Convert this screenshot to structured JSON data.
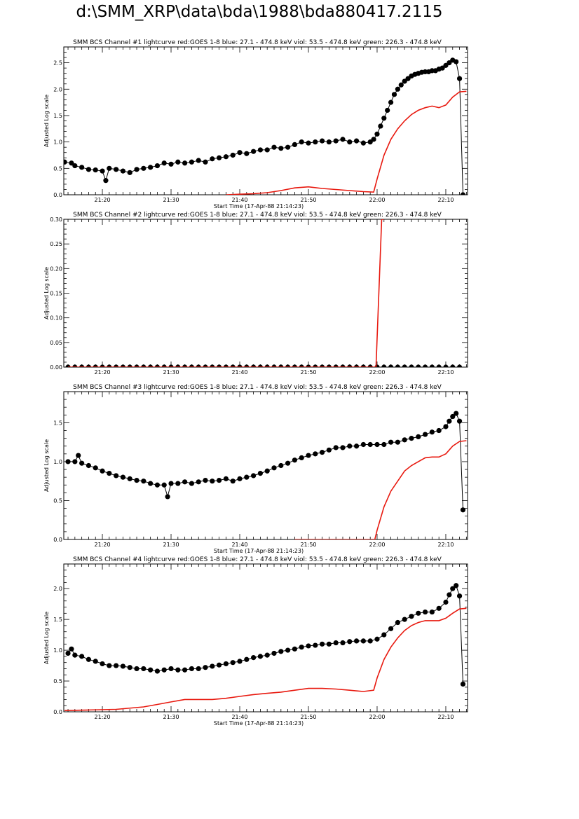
{
  "page": {
    "title": "d:\\SMM_XRP\\data\\bda\\1988\\bda880417.2115"
  },
  "colors": {
    "goes": "#e8190f",
    "points": "#000000"
  },
  "chart_data": [
    {
      "type": "scatter",
      "title": "SMM BCS Channel #1 lightcurve  red:GOES 1-8  blue: 27.1 - 474.8 keV  viol: 53.5 - 474.8 keV  green: 226.3 - 474.8 keV",
      "xlabel": "Start Time (17-Apr-88 21:14:23)",
      "ylabel": "Adjusted Log scale",
      "x_unit": "time",
      "x_ticks": [
        "21:20",
        "21:30",
        "21:40",
        "21:50",
        "22:00",
        "22:10"
      ],
      "y_ticks": [
        "0.0",
        "0.5",
        "1.0",
        "1.5",
        "2.0",
        "2.5"
      ],
      "ylim": [
        0,
        2.8
      ],
      "series": [
        {
          "style": "dots",
          "x": [
            "21:14:30",
            "21:15:30",
            "21:16:00",
            "21:17:00",
            "21:18:00",
            "21:19:00",
            "21:20:00",
            "21:20:30",
            "21:21:00",
            "21:22:00",
            "21:23:00",
            "21:24:00",
            "21:25:00",
            "21:26:00",
            "21:27:00",
            "21:28:00",
            "21:29:00",
            "21:30:00",
            "21:31:00",
            "21:32:00",
            "21:33:00",
            "21:34:00",
            "21:35:00",
            "21:36:00",
            "21:37:00",
            "21:38:00",
            "21:39:00",
            "21:40:00",
            "21:41:00",
            "21:42:00",
            "21:43:00",
            "21:44:00",
            "21:45:00",
            "21:46:00",
            "21:47:00",
            "21:48:00",
            "21:49:00",
            "21:50:00",
            "21:51:00",
            "21:52:00",
            "21:53:00",
            "21:54:00",
            "21:55:00",
            "21:56:00",
            "21:57:00",
            "21:58:00",
            "21:59:00",
            "21:59:30",
            "22:00:00",
            "22:00:30",
            "22:01:00",
            "22:01:30",
            "22:02:00",
            "22:02:30",
            "22:03:00",
            "22:03:30",
            "22:04:00",
            "22:04:30",
            "22:05:00",
            "22:05:30",
            "22:06:00",
            "22:06:30",
            "22:07:00",
            "22:07:30",
            "22:08:00",
            "22:08:30",
            "22:09:00",
            "22:09:30",
            "22:10:00",
            "22:10:30",
            "22:11:00",
            "22:11:30",
            "22:12:00",
            "22:12:30"
          ],
          "y": [
            0.62,
            0.6,
            0.55,
            0.52,
            0.48,
            0.47,
            0.45,
            0.27,
            0.5,
            0.48,
            0.45,
            0.42,
            0.48,
            0.5,
            0.52,
            0.55,
            0.6,
            0.58,
            0.62,
            0.6,
            0.62,
            0.65,
            0.62,
            0.68,
            0.7,
            0.72,
            0.75,
            0.8,
            0.78,
            0.82,
            0.85,
            0.85,
            0.9,
            0.88,
            0.9,
            0.95,
            1.0,
            0.98,
            1.0,
            1.02,
            1.0,
            1.02,
            1.05,
            1.0,
            1.02,
            0.98,
            1.0,
            1.05,
            1.15,
            1.3,
            1.45,
            1.6,
            1.75,
            1.9,
            2.0,
            2.08,
            2.15,
            2.2,
            2.25,
            2.28,
            2.3,
            2.32,
            2.33,
            2.33,
            2.35,
            2.35,
            2.38,
            2.4,
            2.45,
            2.5,
            2.55,
            2.52,
            2.2,
            0.0
          ]
        },
        {
          "style": "line",
          "name": "GOES 1-8",
          "x": [
            "21:38:00",
            "21:40:00",
            "21:42:00",
            "21:44:00",
            "21:46:00",
            "21:48:00",
            "21:50:00",
            "21:52:00",
            "21:54:00",
            "21:56:00",
            "21:58:00",
            "21:59:30",
            "22:00:00",
            "22:01:00",
            "22:02:00",
            "22:03:00",
            "22:04:00",
            "22:05:00",
            "22:06:00",
            "22:07:00",
            "22:08:00",
            "22:09:00",
            "22:10:00",
            "22:11:00",
            "22:12:00",
            "22:13:00"
          ],
          "y": [
            0.0,
            0.01,
            0.02,
            0.04,
            0.08,
            0.13,
            0.15,
            0.12,
            0.1,
            0.08,
            0.06,
            0.05,
            0.3,
            0.75,
            1.05,
            1.25,
            1.4,
            1.52,
            1.6,
            1.65,
            1.68,
            1.65,
            1.7,
            1.85,
            1.95,
            1.96
          ]
        }
      ]
    },
    {
      "type": "scatter",
      "title": "SMM BCS Channel #2 lightcurve  red:GOES 1-8  blue: 27.1 - 474.8 keV  viol: 53.5 - 474.8 keV  green: 226.3 - 474.8 keV",
      "xlabel": "",
      "ylabel": "Adjusted Log scale",
      "x_unit": "time",
      "x_ticks": [
        "21:20",
        "21:30",
        "21:40",
        "21:50",
        "22:00",
        "22:10"
      ],
      "y_ticks": [
        "0.00",
        "0.05",
        "0.10",
        "0.15",
        "0.20",
        "0.25",
        "0.30"
      ],
      "ylim": [
        0,
        0.3
      ],
      "series": [
        {
          "style": "dots",
          "x": [
            "21:15:00",
            "21:16:00",
            "21:17:00",
            "21:18:00",
            "21:19:00",
            "21:20:00",
            "21:21:00",
            "21:22:00",
            "21:23:00",
            "21:24:00",
            "21:25:00",
            "21:26:00",
            "21:27:00",
            "21:28:00",
            "21:29:00",
            "21:30:00",
            "21:31:00",
            "21:32:00",
            "21:33:00",
            "21:34:00",
            "21:35:00",
            "21:36:00",
            "21:37:00",
            "21:38:00",
            "21:39:00",
            "21:40:00",
            "21:41:00",
            "21:42:00",
            "21:43:00",
            "21:44:00",
            "21:45:00",
            "21:46:00",
            "21:47:00",
            "21:48:00",
            "21:49:00",
            "21:50:00",
            "21:51:00",
            "21:52:00",
            "21:53:00",
            "21:54:00",
            "21:55:00",
            "21:56:00",
            "21:57:00",
            "21:58:00",
            "21:59:00",
            "22:00:00",
            "22:01:00",
            "22:02:00",
            "22:03:00",
            "22:04:00",
            "22:05:00",
            "22:06:00",
            "22:07:00",
            "22:08:00",
            "22:09:00",
            "22:10:00",
            "22:11:00",
            "22:12:00"
          ],
          "y": [
            0,
            0,
            0,
            0,
            0,
            0,
            0,
            0,
            0,
            0,
            0,
            0,
            0,
            0,
            0,
            0,
            0,
            0,
            0,
            0,
            0,
            0,
            0,
            0,
            0,
            0,
            0,
            0,
            0,
            0,
            0,
            0,
            0,
            0,
            0,
            0,
            0,
            0,
            0,
            0,
            0,
            0,
            0,
            0,
            0,
            0,
            0,
            0,
            0,
            0,
            0,
            0,
            0,
            0,
            0,
            0,
            0,
            0
          ]
        },
        {
          "style": "line",
          "name": "GOES 1-8",
          "x": [
            "21:15:00",
            "21:59:50",
            "22:00:40",
            "22:01:00"
          ],
          "y": [
            0.0,
            0.0,
            0.3,
            0.3
          ]
        }
      ]
    },
    {
      "type": "scatter",
      "title": "SMM BCS Channel #3 lightcurve  red:GOES 1-8  blue: 27.1 - 474.8 keV  viol: 53.5 - 474.8 keV  green: 226.3 - 474.8 keV",
      "xlabel": "Start Time (17-Apr-88 21:14:23)",
      "ylabel": "Adjusted Log scale",
      "x_unit": "time",
      "x_ticks": [
        "21:20",
        "21:30",
        "21:40",
        "21:50",
        "22:00",
        "22:10"
      ],
      "y_ticks": [
        "0.0",
        "0.5",
        "1.0",
        "1.5"
      ],
      "ylim": [
        0,
        1.9
      ],
      "series": [
        {
          "style": "dots",
          "x": [
            "21:15:00",
            "21:16:00",
            "21:16:30",
            "21:17:00",
            "21:18:00",
            "21:19:00",
            "21:20:00",
            "21:21:00",
            "21:22:00",
            "21:23:00",
            "21:24:00",
            "21:25:00",
            "21:26:00",
            "21:27:00",
            "21:28:00",
            "21:29:00",
            "21:29:30",
            "21:30:00",
            "21:31:00",
            "21:32:00",
            "21:33:00",
            "21:34:00",
            "21:35:00",
            "21:36:00",
            "21:37:00",
            "21:38:00",
            "21:39:00",
            "21:40:00",
            "21:41:00",
            "21:42:00",
            "21:43:00",
            "21:44:00",
            "21:45:00",
            "21:46:00",
            "21:47:00",
            "21:48:00",
            "21:49:00",
            "21:50:00",
            "21:51:00",
            "21:52:00",
            "21:53:00",
            "21:54:00",
            "21:55:00",
            "21:56:00",
            "21:57:00",
            "21:58:00",
            "21:59:00",
            "22:00:00",
            "22:01:00",
            "22:02:00",
            "22:03:00",
            "22:04:00",
            "22:05:00",
            "22:06:00",
            "22:07:00",
            "22:08:00",
            "22:09:00",
            "22:10:00",
            "22:10:30",
            "22:11:00",
            "22:11:30",
            "22:12:00",
            "22:12:30"
          ],
          "y": [
            1.0,
            1.0,
            1.08,
            0.98,
            0.95,
            0.92,
            0.88,
            0.85,
            0.82,
            0.8,
            0.78,
            0.76,
            0.75,
            0.72,
            0.7,
            0.7,
            0.55,
            0.72,
            0.72,
            0.74,
            0.72,
            0.74,
            0.76,
            0.75,
            0.76,
            0.78,
            0.75,
            0.78,
            0.8,
            0.82,
            0.85,
            0.88,
            0.92,
            0.95,
            0.98,
            1.02,
            1.05,
            1.08,
            1.1,
            1.12,
            1.15,
            1.18,
            1.18,
            1.2,
            1.2,
            1.22,
            1.22,
            1.22,
            1.22,
            1.25,
            1.25,
            1.28,
            1.3,
            1.32,
            1.35,
            1.38,
            1.4,
            1.45,
            1.52,
            1.58,
            1.62,
            1.52,
            0.38
          ]
        },
        {
          "style": "line",
          "name": "GOES 1-8",
          "x": [
            "21:48:00",
            "21:49:00",
            "21:50:00",
            "21:51:00",
            "21:52:00",
            "21:54:00",
            "21:58:00",
            "21:59:40",
            "22:00:00",
            "22:01:00",
            "22:02:00",
            "22:03:00",
            "22:04:00",
            "22:05:00",
            "22:06:00",
            "22:07:00",
            "22:08:00",
            "22:09:00",
            "22:10:00",
            "22:11:00",
            "22:12:00",
            "22:13:00"
          ],
          "y": [
            0.0,
            0.0,
            0.0,
            0.0,
            0.0,
            0.0,
            0.0,
            0.0,
            0.12,
            0.42,
            0.62,
            0.75,
            0.88,
            0.95,
            1.0,
            1.05,
            1.06,
            1.06,
            1.1,
            1.2,
            1.26,
            1.27
          ]
        }
      ]
    },
    {
      "type": "scatter",
      "title": "SMM BCS Channel #4 lightcurve  red:GOES 1-8  blue: 27.1 - 474.8 keV  viol: 53.5 - 474.8 keV  green: 226.3 - 474.8 keV",
      "xlabel": "Start Time (17-Apr-88 21:14:23)",
      "ylabel": "Adjusted Log scale",
      "x_unit": "time",
      "x_ticks": [
        "21:20",
        "21:30",
        "21:40",
        "21:50",
        "22:00",
        "22:10"
      ],
      "y_ticks": [
        "0.0",
        "0.5",
        "1.0",
        "1.5",
        "2.0"
      ],
      "ylim": [
        0,
        2.4
      ],
      "series": [
        {
          "style": "dots",
          "x": [
            "21:15:00",
            "21:15:30",
            "21:16:00",
            "21:17:00",
            "21:18:00",
            "21:19:00",
            "21:20:00",
            "21:21:00",
            "21:22:00",
            "21:23:00",
            "21:24:00",
            "21:25:00",
            "21:26:00",
            "21:27:00",
            "21:28:00",
            "21:29:00",
            "21:30:00",
            "21:31:00",
            "21:32:00",
            "21:33:00",
            "21:34:00",
            "21:35:00",
            "21:36:00",
            "21:37:00",
            "21:38:00",
            "21:39:00",
            "21:40:00",
            "21:41:00",
            "21:42:00",
            "21:43:00",
            "21:44:00",
            "21:45:00",
            "21:46:00",
            "21:47:00",
            "21:48:00",
            "21:49:00",
            "21:50:00",
            "21:51:00",
            "21:52:00",
            "21:53:00",
            "21:54:00",
            "21:55:00",
            "21:56:00",
            "21:57:00",
            "21:58:00",
            "21:59:00",
            "22:00:00",
            "22:01:00",
            "22:02:00",
            "22:03:00",
            "22:04:00",
            "22:05:00",
            "22:06:00",
            "22:07:00",
            "22:08:00",
            "22:09:00",
            "22:10:00",
            "22:10:30",
            "22:11:00",
            "22:11:30",
            "22:12:00",
            "22:12:30"
          ],
          "y": [
            0.95,
            1.02,
            0.92,
            0.9,
            0.85,
            0.82,
            0.78,
            0.75,
            0.75,
            0.74,
            0.72,
            0.7,
            0.7,
            0.68,
            0.66,
            0.68,
            0.7,
            0.68,
            0.68,
            0.7,
            0.7,
            0.72,
            0.74,
            0.76,
            0.78,
            0.8,
            0.82,
            0.85,
            0.88,
            0.9,
            0.92,
            0.95,
            0.98,
            1.0,
            1.02,
            1.05,
            1.07,
            1.08,
            1.1,
            1.1,
            1.12,
            1.12,
            1.14,
            1.15,
            1.15,
            1.15,
            1.18,
            1.25,
            1.35,
            1.45,
            1.5,
            1.55,
            1.6,
            1.62,
            1.62,
            1.68,
            1.78,
            1.9,
            2.0,
            2.05,
            1.88,
            0.45
          ]
        },
        {
          "style": "line",
          "name": "GOES 1-8",
          "x": [
            "21:14:30",
            "21:18:00",
            "21:22:00",
            "21:26:00",
            "21:28:00",
            "21:30:00",
            "21:32:00",
            "21:34:00",
            "21:36:00",
            "21:38:00",
            "21:40:00",
            "21:42:00",
            "21:44:00",
            "21:46:00",
            "21:48:00",
            "21:50:00",
            "21:52:00",
            "21:54:00",
            "21:56:00",
            "21:58:00",
            "21:59:30",
            "22:00:00",
            "22:01:00",
            "22:02:00",
            "22:03:00",
            "22:04:00",
            "22:05:00",
            "22:06:00",
            "22:07:00",
            "22:08:00",
            "22:09:00",
            "22:10:00",
            "22:11:00",
            "22:12:00",
            "22:13:00"
          ],
          "y": [
            0.02,
            0.03,
            0.04,
            0.08,
            0.12,
            0.16,
            0.2,
            0.2,
            0.2,
            0.22,
            0.25,
            0.28,
            0.3,
            0.32,
            0.35,
            0.38,
            0.38,
            0.37,
            0.35,
            0.33,
            0.35,
            0.55,
            0.85,
            1.05,
            1.2,
            1.32,
            1.4,
            1.45,
            1.48,
            1.48,
            1.48,
            1.52,
            1.6,
            1.67,
            1.68
          ]
        }
      ]
    }
  ]
}
